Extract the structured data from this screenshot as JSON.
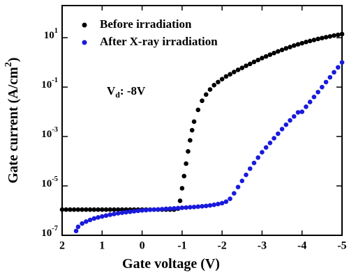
{
  "chart_data": {
    "type": "scatter",
    "xlabel": "Gate voltage (V)",
    "ylabel": "Gate current (A/cm^2)",
    "annotation": "V_d: -8V",
    "xlim": [
      2,
      -5
    ],
    "xticks": [
      2,
      1,
      0,
      -1,
      -2,
      -3,
      -4,
      -5
    ],
    "ylim": [
      1e-07,
      200
    ],
    "yscale": "log",
    "yticks": [
      {
        "value": 1e-07,
        "label": "10^-7"
      },
      {
        "value": 1e-05,
        "label": "10^-5"
      },
      {
        "value": 0.001,
        "label": "10^-3"
      },
      {
        "value": 0.1,
        "label": "10^-1"
      },
      {
        "value": 10,
        "label": "10^1"
      }
    ],
    "legend": "upper left",
    "series": [
      {
        "name": "Before irradiation",
        "color": "#000000",
        "x": [
          2,
          1.9,
          1.8,
          1.7,
          1.6,
          1.5,
          1.4,
          1.3,
          1.2,
          1.1,
          1,
          0.9,
          0.8,
          0.7,
          0.6,
          0.5,
          0.4,
          0.3,
          0.2,
          0.1,
          0,
          -0.1,
          -0.2,
          -0.3,
          -0.4,
          -0.5,
          -0.6,
          -0.7,
          -0.8,
          -0.9,
          -0.95,
          -1,
          -1.05,
          -1.1,
          -1.15,
          -1.2,
          -1.25,
          -1.3,
          -1.4,
          -1.5,
          -1.6,
          -1.7,
          -1.8,
          -1.9,
          -2,
          -2.1,
          -2.2,
          -2.3,
          -2.4,
          -2.5,
          -2.6,
          -2.7,
          -2.8,
          -2.9,
          -3,
          -3.1,
          -3.2,
          -3.3,
          -3.4,
          -3.5,
          -3.6,
          -3.7,
          -3.8,
          -3.9,
          -4,
          -4.1,
          -4.2,
          -4.3,
          -4.4,
          -4.5,
          -4.6,
          -4.7,
          -4.8,
          -4.9,
          -5
        ],
        "values": [
          1.1e-06,
          1.1e-06,
          1.1e-06,
          1.1e-06,
          1.1e-06,
          1.1e-06,
          1.1e-06,
          1.1e-06,
          1.1e-06,
          1.1e-06,
          1.1e-06,
          1.1e-06,
          1.1e-06,
          1.1e-06,
          1.1e-06,
          1.1e-06,
          1.1e-06,
          1.1e-06,
          1.1e-06,
          1.1e-06,
          1.1e-06,
          1.1e-06,
          1.1e-06,
          1.1e-06,
          1.1e-06,
          1.1e-06,
          1.1e-06,
          1.1e-06,
          1.1e-06,
          1.2e-06,
          2.5e-06,
          8e-06,
          2.5e-05,
          8e-05,
          0.00025,
          0.0007,
          0.0018,
          0.004,
          0.012,
          0.028,
          0.05,
          0.08,
          0.12,
          0.16,
          0.21,
          0.27,
          0.33,
          0.41,
          0.5,
          0.6,
          0.73,
          0.87,
          1.05,
          1.25,
          1.5,
          1.75,
          2.05,
          2.4,
          2.8,
          3.2,
          3.7,
          4.2,
          4.8,
          5.4,
          6,
          6.7,
          7.4,
          8.1,
          8.9,
          9.7,
          10.5,
          11.3,
          12.2,
          13.1,
          14
        ]
      },
      {
        "name": "After X-ray irradiation",
        "color": "#1a1adc",
        "x": [
          1.65,
          1.6,
          1.5,
          1.4,
          1.3,
          1.2,
          1.1,
          1,
          0.9,
          0.8,
          0.7,
          0.6,
          0.5,
          0.4,
          0.3,
          0.2,
          0.1,
          0,
          -0.1,
          -0.2,
          -0.3,
          -0.4,
          -0.5,
          -0.6,
          -0.7,
          -0.8,
          -0.9,
          -1,
          -1.1,
          -1.2,
          -1.3,
          -1.4,
          -1.5,
          -1.6,
          -1.7,
          -1.8,
          -1.9,
          -2,
          -2.1,
          -2.2,
          -2.3,
          -2.4,
          -2.5,
          -2.6,
          -2.7,
          -2.8,
          -2.9,
          -3,
          -3.1,
          -3.2,
          -3.3,
          -3.4,
          -3.5,
          -3.6,
          -3.7,
          -3.8,
          -3.9,
          -4,
          -4.1,
          -4.2,
          -4.3,
          -4.4,
          -4.5,
          -4.6,
          -4.7,
          -4.8,
          -4.9,
          -5
        ],
        "values": [
          1.5e-07,
          2.2e-07,
          3e-07,
          3.6e-07,
          4.2e-07,
          4.8e-07,
          5.3e-07,
          5.8e-07,
          6.3e-07,
          6.8e-07,
          7.3e-07,
          7.8e-07,
          8.2e-07,
          8.6e-07,
          9e-07,
          9.4e-07,
          9.8e-07,
          1.02e-06,
          1.05e-06,
          1.08e-06,
          1.1e-06,
          1.12e-06,
          1.15e-06,
          1.18e-06,
          1.2e-06,
          1.23e-06,
          1.26e-06,
          1.3e-06,
          1.33e-06,
          1.37e-06,
          1.4e-06,
          1.45e-06,
          1.5e-06,
          1.55e-06,
          1.62e-06,
          1.72e-06,
          1.85e-06,
          2e-06,
          2.3e-06,
          3e-06,
          5e-06,
          9e-06,
          1.6e-05,
          2.8e-05,
          5e-05,
          8.5e-05,
          0.00014,
          0.00023,
          0.00036,
          0.00055,
          0.00085,
          0.0013,
          0.002,
          0.003,
          0.0045,
          0.0065,
          0.0095,
          0.01,
          0.016,
          0.025,
          0.04,
          0.063,
          0.1,
          0.16,
          0.25,
          0.4,
          0.63,
          1
        ]
      }
    ]
  }
}
